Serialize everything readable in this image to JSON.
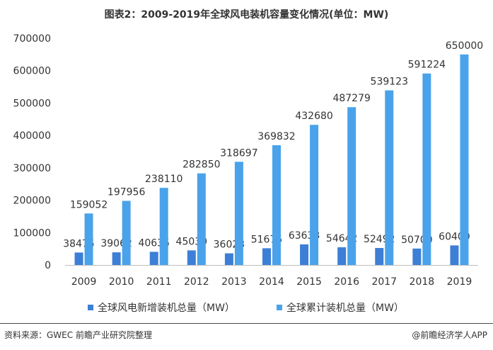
{
  "title": "图表2：2009-2019年全球风电装机容量变化情况(单位：MW)",
  "source": "资料来源：GWEC 前瞻产业研究院整理",
  "brand": "@前瞻经济学人APP",
  "colors": {
    "new": "#3d7fd6",
    "cumulative": "#4aa3ea",
    "text": "#333333",
    "axis": "#bfbfbf"
  },
  "chart_data": {
    "type": "bar",
    "title": "2009-2019年全球风电装机容量变化情况",
    "xlabel": "",
    "ylabel": "",
    "ylim": [
      0,
      700000
    ],
    "yticks": [
      "0",
      "100000",
      "200000",
      "300000",
      "400000",
      "500000",
      "600000",
      "700000"
    ],
    "categories": [
      "2009",
      "2010",
      "2011",
      "2012",
      "2013",
      "2014",
      "2015",
      "2016",
      "2017",
      "2018",
      "2019"
    ],
    "series": [
      {
        "name": "全球风电新增装机总量（MW）",
        "values": [
          38475,
          39062,
          40635,
          45030,
          36023,
          51675,
          63633,
          54642,
          52492,
          50700,
          60400
        ]
      },
      {
        "name": "全球累计装机总量（MW）",
        "values": [
          159052,
          197956,
          238110,
          282850,
          318697,
          369832,
          432680,
          487279,
          539123,
          591224,
          650000
        ]
      }
    ]
  }
}
